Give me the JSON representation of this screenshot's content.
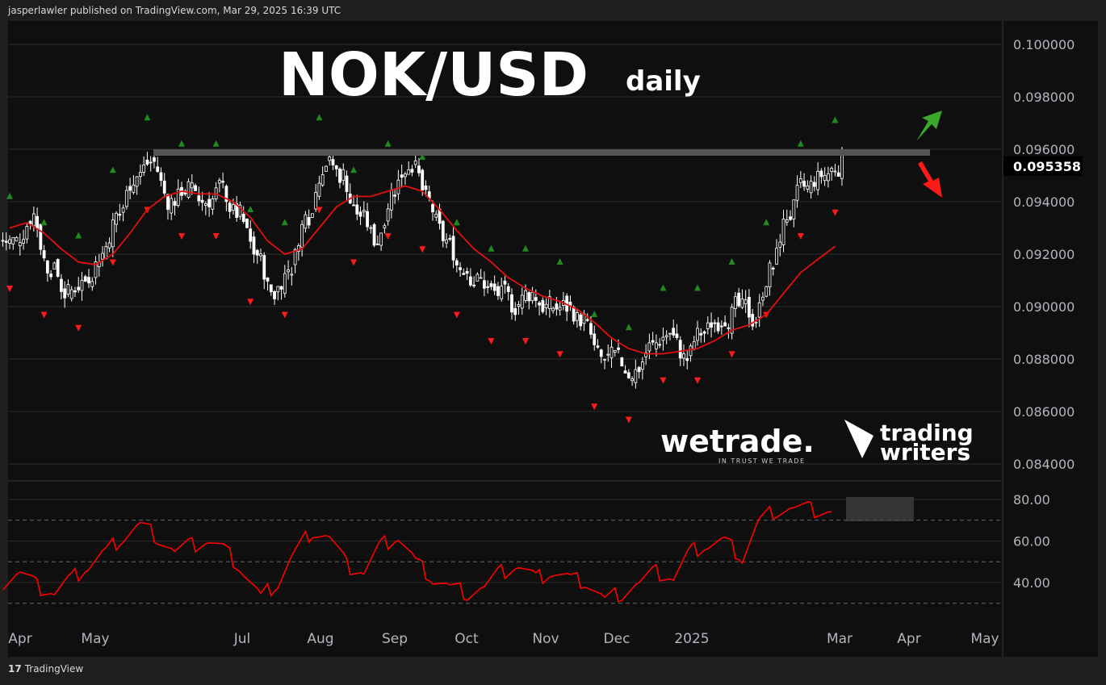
{
  "header": {
    "attribution": "jasperlawler published on TradingView.com, Mar 29, 2025 16:39 UTC"
  },
  "footer": {
    "brand": "TradingView"
  },
  "overlay": {
    "title": "NOK/USD",
    "timeframe": "daily",
    "logo1": "wetrade.",
    "logo1_tagline": "IN TRUST WE TRADE",
    "logo2_line1": "trading",
    "logo2_line2": "writers"
  },
  "colors": {
    "background": "#0f0f0f",
    "candle": "#ffffff",
    "moving_average": "#e01010",
    "rsi": "#ff0000",
    "resistance": "#555555",
    "up_arrow": "#3aa82a",
    "down_arrow": "#ff1a1a"
  },
  "chart_data": [
    {
      "type": "candlestick",
      "title": "NOK/USD",
      "subtitle": "daily",
      "last_price": "0.095358",
      "y_ticks": [
        "0.100000",
        "0.098000",
        "0.096000",
        "0.094000",
        "0.092000",
        "0.090000",
        "0.088000",
        "0.086000",
        "0.084000"
      ],
      "ylim": [
        0.084,
        0.1005
      ],
      "x_ticks": [
        "Apr",
        "May",
        "Jul",
        "Aug",
        "Sep",
        "Oct",
        "Nov",
        "Dec",
        "2025",
        "Mar",
        "Apr",
        "May"
      ],
      "resistance_level": 0.0959,
      "weekly_closes": [
        0.0925,
        0.0935,
        0.0915,
        0.0905,
        0.091,
        0.092,
        0.0935,
        0.095,
        0.0955,
        0.094,
        0.0945,
        0.094,
        0.0945,
        0.0935,
        0.092,
        0.0905,
        0.0915,
        0.0935,
        0.0955,
        0.095,
        0.0935,
        0.0925,
        0.0945,
        0.0955,
        0.094,
        0.0925,
        0.0915,
        0.091,
        0.0905,
        0.09,
        0.0905,
        0.09,
        0.09,
        0.0895,
        0.088,
        0.088,
        0.0875,
        0.0885,
        0.089,
        0.088,
        0.089,
        0.0895,
        0.09,
        0.0895,
        0.0915,
        0.0935,
        0.0945,
        0.095,
        0.0954
      ],
      "moving_average": [
        0.093,
        0.0932,
        0.0928,
        0.0922,
        0.0917,
        0.0916,
        0.092,
        0.0928,
        0.0937,
        0.0942,
        0.0944,
        0.0943,
        0.0943,
        0.094,
        0.0934,
        0.0925,
        0.092,
        0.0922,
        0.093,
        0.0938,
        0.0942,
        0.0942,
        0.0944,
        0.0946,
        0.0944,
        0.0937,
        0.0929,
        0.0922,
        0.0917,
        0.0911,
        0.0907,
        0.0904,
        0.0902,
        0.0899,
        0.0894,
        0.0888,
        0.0884,
        0.0882,
        0.0882,
        0.0883,
        0.0884,
        0.0887,
        0.0891,
        0.0893,
        0.0897,
        0.0905,
        0.0913,
        0.0918,
        0.0923
      ]
    },
    {
      "type": "line",
      "series_name": "RSI",
      "y_ticks": [
        "80.00",
        "60.00",
        "40.00"
      ],
      "ylim": [
        25,
        85
      ],
      "levels": [
        70,
        50,
        30
      ],
      "weekly_values": [
        40,
        45,
        38,
        35,
        42,
        48,
        55,
        62,
        68,
        62,
        55,
        58,
        60,
        55,
        45,
        33,
        40,
        55,
        65,
        62,
        48,
        45,
        58,
        62,
        50,
        42,
        38,
        35,
        38,
        45,
        48,
        42,
        45,
        42,
        40,
        32,
        35,
        40,
        45,
        42,
        55,
        58,
        60,
        52,
        70,
        75,
        76,
        75,
        74
      ]
    }
  ]
}
